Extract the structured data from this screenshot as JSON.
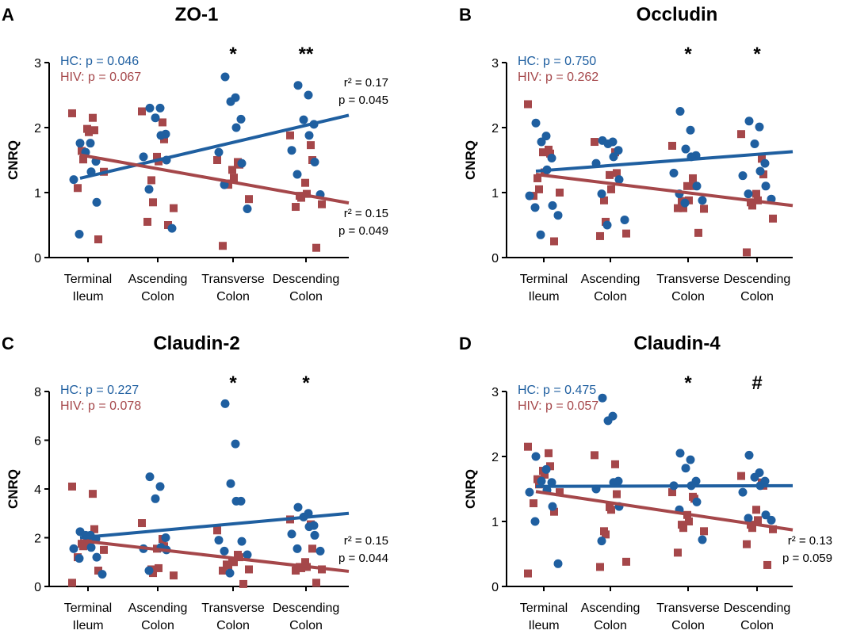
{
  "colors": {
    "hc": "#1f5fa0",
    "hiv": "#a5474a"
  },
  "chart_data": [
    {
      "type": "scatter",
      "panel_label": "A",
      "title": "ZO-1",
      "xlabel": "",
      "ylabel": "CNRQ",
      "ylim": [
        0,
        3
      ],
      "yticks": [
        "0",
        "1",
        "2",
        "3"
      ],
      "categories": [
        "Terminal Ileum",
        "Ascending Colon",
        "Transverse Colon",
        "Descending Colon"
      ],
      "category_lines": [
        [
          "Terminal",
          "Ileum"
        ],
        [
          "Ascending",
          "Colon"
        ],
        [
          "Transverse",
          "Colon"
        ],
        [
          "Descending",
          "Colon"
        ]
      ],
      "legend": {
        "hc": "HC: p = 0.046",
        "hiv": "HIV: p = 0.067"
      },
      "significance": [
        "",
        "",
        "*",
        "**"
      ],
      "hc_stats": [
        "r² = 0.17",
        "p = 0.045"
      ],
      "hiv_stats": [
        "r² = 0.15",
        "p = 0.049"
      ],
      "hc_stats_pos": "upper",
      "hiv_stats_pos": "lower",
      "series": [
        {
          "name": "HC",
          "values": [
            [
              1.76,
              1.76,
              1.62,
              1.48,
              1.32,
              1.2,
              0.85,
              0.36
            ],
            [
              2.3,
              2.3,
              2.15,
              1.9,
              1.88,
              1.55,
              1.5,
              1.05,
              0.45
            ],
            [
              2.78,
              2.46,
              2.4,
              2.13,
              2.0,
              1.62,
              1.45,
              1.12,
              0.75
            ],
            [
              2.65,
              2.5,
              2.12,
              2.05,
              1.88,
              1.65,
              1.47,
              1.28,
              0.97
            ]
          ]
        },
        {
          "name": "HIV",
          "values": [
            [
              2.22,
              2.15,
              1.96,
              1.98,
              1.93,
              1.64,
              1.51,
              1.32,
              1.07,
              0.28
            ],
            [
              2.25,
              2.08,
              1.82,
              1.55,
              1.48,
              1.19,
              0.85,
              0.76,
              0.55,
              0.5
            ],
            [
              1.5,
              1.47,
              1.43,
              1.35,
              1.23,
              1.14,
              1.12,
              0.9,
              0.18
            ],
            [
              1.88,
              1.73,
              1.5,
              1.15,
              0.98,
              0.95,
              0.92,
              0.82,
              0.78,
              0.15
            ]
          ]
        }
      ],
      "fits": [
        {
          "name": "HC",
          "x0": 0,
          "y0": 1.22,
          "x1": 3.6,
          "y1": 2.19
        },
        {
          "name": "HIV",
          "x0": 0,
          "y0": 1.58,
          "x1": 3.6,
          "y1": 0.84
        }
      ]
    },
    {
      "type": "scatter",
      "panel_label": "B",
      "title": "Occludin",
      "xlabel": "",
      "ylabel": "CNRQ",
      "ylim": [
        0,
        3
      ],
      "yticks": [
        "0",
        "1",
        "2",
        "3"
      ],
      "categories": [
        "Terminal Ileum",
        "Ascending Colon",
        "Transverse Colon",
        "Descending Colon"
      ],
      "category_lines": [
        [
          "Terminal",
          "Ileum"
        ],
        [
          "Ascending",
          "Colon"
        ],
        [
          "Transverse",
          "Colon"
        ],
        [
          "Descending",
          "Colon"
        ]
      ],
      "legend": {
        "hc": "HC: p = 0.750",
        "hiv": "HIV: p = 0.262"
      },
      "significance": [
        "",
        "",
        "*",
        "*"
      ],
      "hc_stats": [],
      "hiv_stats": [],
      "hc_stats_pos": "upper",
      "hiv_stats_pos": "lower",
      "series": [
        {
          "name": "HC",
          "values": [
            [
              2.07,
              1.87,
              1.78,
              1.53,
              1.35,
              0.95,
              0.8,
              0.77,
              0.65,
              0.35
            ],
            [
              1.8,
              1.78,
              1.75,
              1.65,
              1.55,
              1.45,
              1.2,
              0.98,
              0.58,
              0.5
            ],
            [
              2.25,
              1.96,
              1.67,
              1.57,
              1.55,
              1.3,
              1.1,
              0.98,
              0.88,
              0.84
            ],
            [
              2.1,
              2.01,
              1.75,
              1.45,
              1.33,
              1.26,
              1.1,
              0.98,
              0.9
            ]
          ]
        },
        {
          "name": "HIV",
          "values": [
            [
              2.36,
              1.66,
              1.6,
              1.62,
              1.31,
              1.22,
              1.05,
              1.0,
              0.95,
              0.25
            ],
            [
              1.78,
              1.62,
              1.3,
              1.27,
              1.05,
              0.88,
              0.55,
              0.37,
              0.33
            ],
            [
              1.72,
              1.22,
              1.1,
              1.1,
              0.88,
              0.87,
              0.76,
              0.75,
              0.76,
              0.38
            ],
            [
              1.9,
              1.52,
              1.28,
              0.98,
              0.88,
              0.85,
              0.8,
              0.6,
              0.08
            ]
          ]
        }
      ],
      "fits": [
        {
          "name": "HC",
          "x0": 0,
          "y0": 1.33,
          "x1": 3.6,
          "y1": 1.63
        },
        {
          "name": "HIV",
          "x0": 0,
          "y0": 1.28,
          "x1": 3.6,
          "y1": 0.8
        }
      ]
    },
    {
      "type": "scatter",
      "panel_label": "C",
      "title": "Claudin-2",
      "xlabel": "",
      "ylabel": "CNRQ",
      "ylim": [
        0,
        8
      ],
      "yticks": [
        "0",
        "2",
        "4",
        "6",
        "8"
      ],
      "categories": [
        "Terminal Ileum",
        "Ascending Colon",
        "Transverse Colon",
        "Descending Colon"
      ],
      "category_lines": [
        [
          "Terminal",
          "Ileum"
        ],
        [
          "Ascending",
          "Colon"
        ],
        [
          "Transverse",
          "Colon"
        ],
        [
          "Descending",
          "Colon"
        ]
      ],
      "legend": {
        "hc": "HC: p = 0.227",
        "hiv": "HIV: p = 0.078"
      },
      "significance": [
        "",
        "",
        "*",
        "*"
      ],
      "hc_stats": [],
      "hiv_stats": [
        "r² = 0.15",
        "p = 0.044"
      ],
      "hc_stats_pos": "upper",
      "hiv_stats_pos": "lower",
      "series": [
        {
          "name": "HC",
          "values": [
            [
              2.25,
              2.1,
              2.1,
              1.95,
              1.6,
              1.55,
              1.2,
              1.15,
              0.5
            ],
            [
              4.5,
              4.1,
              3.6,
              2.0,
              1.6,
              1.55,
              1.5,
              0.65
            ],
            [
              7.5,
              5.85,
              4.22,
              3.5,
              3.5,
              1.9,
              1.85,
              1.45,
              1.3,
              0.55
            ],
            [
              3.25,
              3.0,
              2.85,
              2.5,
              2.45,
              2.15,
              2.1,
              1.55,
              1.45
            ]
          ]
        },
        {
          "name": "HIV",
          "values": [
            [
              4.1,
              3.8,
              2.35,
              1.95,
              1.8,
              1.75,
              1.65,
              1.5,
              1.2,
              0.65,
              0.15
            ],
            [
              2.6,
              1.95,
              1.65,
              1.55,
              0.75,
              0.7,
              0.55,
              0.45
            ],
            [
              2.3,
              1.3,
              1.2,
              1.05,
              1.0,
              0.9,
              0.85,
              0.7,
              0.65,
              0.1
            ],
            [
              2.75,
              2.55,
              1.55,
              1.0,
              0.8,
              0.8,
              0.75,
              0.7,
              0.65,
              0.15
            ]
          ]
        }
      ],
      "fits": [
        {
          "name": "HC",
          "x0": 0,
          "y0": 2.0,
          "x1": 3.6,
          "y1": 3.0
        },
        {
          "name": "HIV",
          "x0": 0,
          "y0": 1.88,
          "x1": 3.6,
          "y1": 0.62
        }
      ]
    },
    {
      "type": "scatter",
      "panel_label": "D",
      "title": "Claudin-4",
      "xlabel": "",
      "ylabel": "CNRQ",
      "ylim": [
        0,
        3
      ],
      "yticks": [
        "0",
        "1",
        "2",
        "3"
      ],
      "categories": [
        "Terminal Ileum",
        "Ascending Colon",
        "Transverse Colon",
        "Descending Colon"
      ],
      "category_lines": [
        [
          "Terminal",
          "Ileum"
        ],
        [
          "Ascending",
          "Colon"
        ],
        [
          "Transverse",
          "Colon"
        ],
        [
          "Descending",
          "Colon"
        ]
      ],
      "legend": {
        "hc": "HC: p = 0.475",
        "hiv": "HIV: p = 0.057"
      },
      "significance": [
        "",
        "",
        "*",
        "#"
      ],
      "hc_stats": [],
      "hiv_stats": [
        "r² = 0.13",
        "p = 0.059"
      ],
      "hc_stats_pos": "upper",
      "hiv_stats_pos": "lower",
      "series": [
        {
          "name": "HC",
          "values": [
            [
              2.0,
              1.8,
              1.62,
              1.6,
              1.48,
              1.45,
              1.23,
              1.0,
              0.35
            ],
            [
              2.9,
              2.62,
              2.55,
              1.62,
              1.6,
              1.5,
              1.23,
              0.7
            ],
            [
              2.05,
              1.95,
              1.82,
              1.62,
              1.55,
              1.55,
              1.3,
              1.18,
              0.72
            ],
            [
              2.02,
              1.75,
              1.68,
              1.62,
              1.55,
              1.45,
              1.1,
              1.05,
              1.02
            ]
          ]
        },
        {
          "name": "HIV",
          "values": [
            [
              2.15,
              2.05,
              1.85,
              1.78,
              1.72,
              1.65,
              1.57,
              1.45,
              1.28,
              1.15,
              0.2
            ],
            [
              2.02,
              1.88,
              1.42,
              1.22,
              1.18,
              0.85,
              0.8,
              0.38,
              0.3
            ],
            [
              1.45,
              1.38,
              1.35,
              1.1,
              1.0,
              0.95,
              0.9,
              0.85,
              0.52
            ],
            [
              1.7,
              1.6,
              1.55,
              1.18,
              1.02,
              0.95,
              0.9,
              0.88,
              0.65,
              0.33
            ]
          ]
        }
      ],
      "fits": [
        {
          "name": "HC",
          "x0": 0,
          "y0": 1.54,
          "x1": 3.6,
          "y1": 1.55
        },
        {
          "name": "HIV",
          "x0": 0,
          "y0": 1.46,
          "x1": 3.6,
          "y1": 0.87
        }
      ]
    }
  ]
}
